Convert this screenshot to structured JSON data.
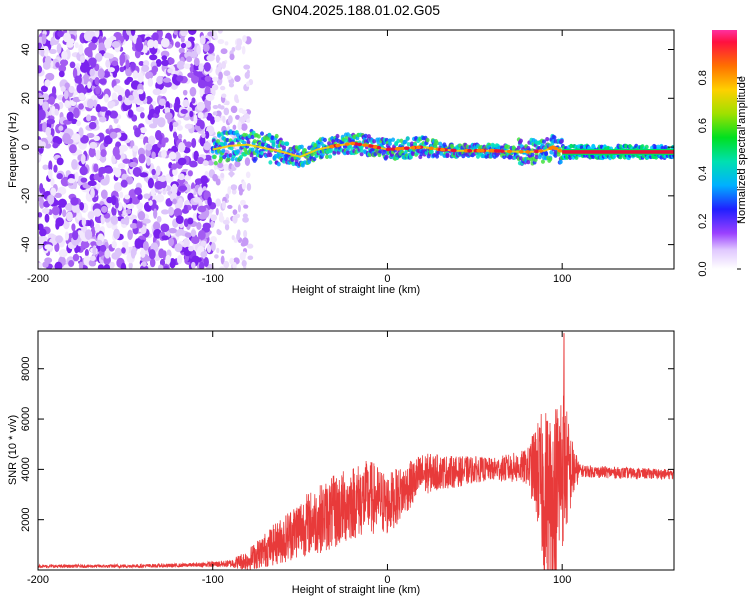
{
  "title": "GN04.2025.188.01.02.G05",
  "colors": {
    "snr_line": "#e83a3a",
    "ridge": "#e8103a",
    "background": "#ffffff"
  },
  "chart_data": [
    {
      "type": "heatmap",
      "xlabel": "Height of straight line (km)",
      "ylabel": "Frequency (Hz)",
      "xlim": [
        -200,
        164
      ],
      "ylim": [
        -50,
        48
      ],
      "xticks": [
        -200,
        -100,
        0,
        100
      ],
      "xtick_labels": [
        "-200",
        "-100",
        "0",
        "100"
      ],
      "yticks": [
        -40,
        -20,
        0,
        20,
        40
      ],
      "ytick_labels": [
        "-40",
        "-20",
        "0",
        "20",
        "40"
      ],
      "colorbar": {
        "label": "Normalized spectral amplitude",
        "range": [
          0,
          1
        ],
        "ticks": [
          0.0,
          0.2,
          0.4,
          0.6,
          0.8
        ],
        "tick_labels": [
          "0.0",
          "0.2",
          "0.4",
          "0.6",
          "0.8"
        ]
      },
      "ridge": {
        "x": [
          -100,
          -90,
          -80,
          -70,
          -60,
          -50,
          -40,
          -30,
          -20,
          -10,
          0,
          10,
          20,
          30,
          40,
          50,
          60,
          70,
          80,
          90,
          95,
          100,
          120,
          140,
          164
        ],
        "y": [
          -1,
          0.5,
          1,
          -0.5,
          -2,
          -4,
          -1,
          0.5,
          1.5,
          0.5,
          -1,
          -0.5,
          0,
          -1,
          -1.5,
          -1.5,
          -1.5,
          -1.8,
          -2,
          -1.5,
          0,
          -2,
          -2,
          -2,
          -2
        ]
      }
    },
    {
      "type": "line",
      "xlabel": "Height of straight line (km)",
      "ylabel": "SNR (10 * v/v)",
      "xlim": [
        -200,
        164
      ],
      "ylim": [
        0,
        9500
      ],
      "xticks": [
        -200,
        -100,
        0,
        100
      ],
      "xtick_labels": [
        "-200",
        "-100",
        "0",
        "100"
      ],
      "yticks": [
        2000,
        4000,
        6000,
        8000
      ],
      "ytick_labels": [
        "2000",
        "4000",
        "6000",
        "8000"
      ],
      "envelope": {
        "x": [
          -200,
          -160,
          -120,
          -90,
          -80,
          -70,
          -60,
          -50,
          -40,
          -30,
          -20,
          -10,
          0,
          10,
          20,
          30,
          40,
          50,
          60,
          70,
          80,
          85,
          90,
          95,
          100,
          104,
          110,
          120,
          140,
          164
        ],
        "y": [
          150,
          150,
          180,
          250,
          400,
          800,
          1200,
          1700,
          2000,
          2300,
          2700,
          2900,
          2600,
          3200,
          3800,
          3900,
          3900,
          4000,
          4000,
          4050,
          4100,
          4000,
          3000,
          2500,
          4200,
          3900,
          3950,
          3900,
          3850,
          3800
        ]
      },
      "noise_amplitude": {
        "x": [
          -200,
          -110,
          -90,
          -70,
          -50,
          -30,
          -10,
          10,
          30,
          60,
          80,
          85,
          90,
          95,
          100,
          105,
          110,
          164
        ],
        "y": [
          60,
          80,
          150,
          700,
          1200,
          1500,
          1500,
          1000,
          700,
          450,
          700,
          1800,
          3500,
          4000,
          3500,
          1500,
          250,
          200
        ]
      },
      "peak": {
        "x": 101,
        "y": 9400
      }
    }
  ]
}
